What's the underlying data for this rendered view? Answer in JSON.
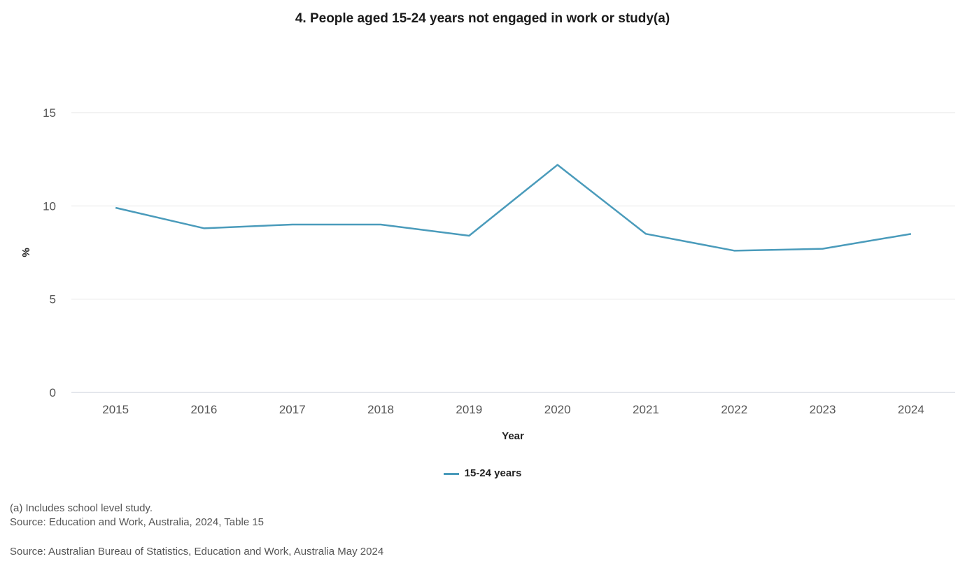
{
  "chart_data": {
    "type": "line",
    "title": "4. People aged 15-24 years not engaged in work or study(a)",
    "xlabel": "Year",
    "ylabel": "%",
    "x": [
      "2015",
      "2016",
      "2017",
      "2018",
      "2019",
      "2020",
      "2021",
      "2022",
      "2023",
      "2024"
    ],
    "series": [
      {
        "name": "15-24 years",
        "color": "#4a9bbb",
        "values": [
          9.9,
          8.8,
          9.0,
          9.0,
          8.4,
          12.2,
          8.5,
          7.6,
          7.7,
          8.5
        ]
      }
    ],
    "ylim": [
      0,
      15
    ],
    "yticks": [
      0,
      5,
      10,
      15
    ],
    "grid": true,
    "legend_position": "bottom-center"
  },
  "notes": [
    "(a) Includes school level study.",
    "Source: Education and Work, Australia, 2024, Table 15"
  ],
  "source": "Source: Australian Bureau of Statistics, Education and Work, Australia May 2024"
}
